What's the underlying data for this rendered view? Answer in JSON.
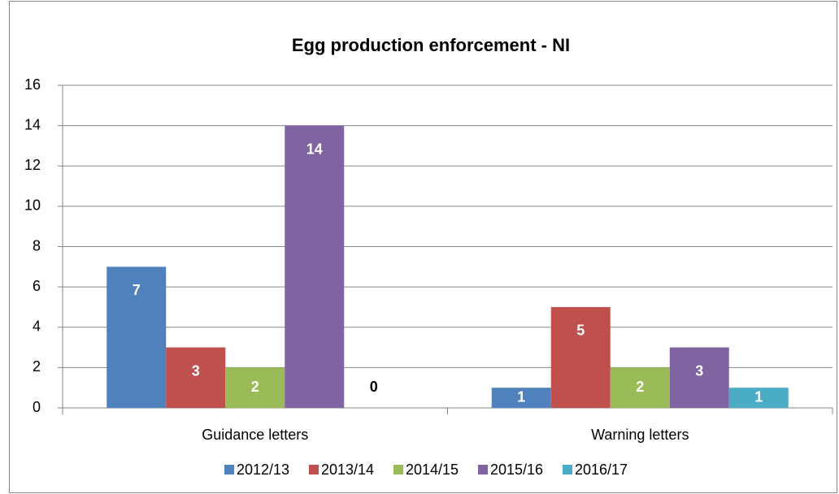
{
  "chart_data": {
    "type": "bar",
    "title": "Egg production enforcement - NI",
    "categories": [
      "Guidance letters",
      "Warning letters"
    ],
    "series": [
      {
        "name": "2012/13",
        "color": "#4f81bd",
        "values": [
          7,
          1
        ]
      },
      {
        "name": "2013/14",
        "color": "#c0504d",
        "values": [
          3,
          5
        ]
      },
      {
        "name": "2014/15",
        "color": "#9bbb59",
        "values": [
          2,
          2
        ]
      },
      {
        "name": "2015/16",
        "color": "#8064a2",
        "values": [
          14,
          3
        ]
      },
      {
        "name": "2016/17",
        "color": "#4bacc6",
        "values": [
          0,
          1
        ]
      }
    ],
    "ylim": [
      0,
      16
    ],
    "yticks": [
      0,
      2,
      4,
      6,
      8,
      10,
      12,
      14,
      16
    ],
    "grid": true,
    "legend": "bottom"
  }
}
